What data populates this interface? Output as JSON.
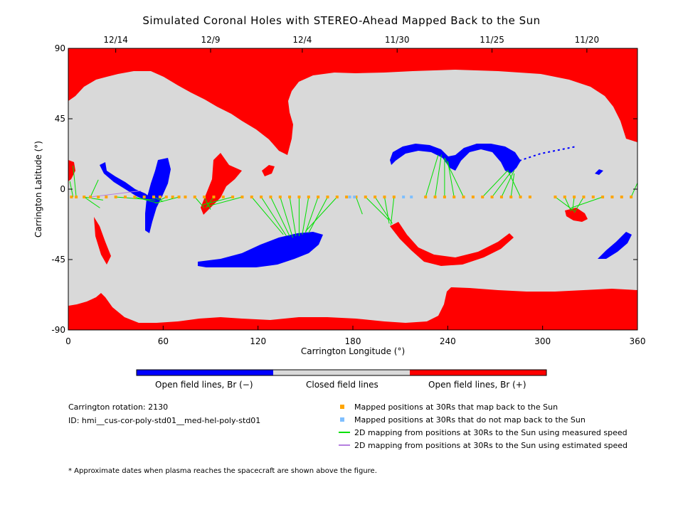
{
  "chart_data": {
    "type": "scatter",
    "title": "Simulated Coronal Holes with STEREO-Ahead Mapped Back to the Sun",
    "xlabel": "Carrington Longitude (°)",
    "ylabel": "Carrington Latitude (°)",
    "xlim": [
      0,
      360
    ],
    "ylim": [
      -90,
      90
    ],
    "x_ticks": [
      0,
      60,
      120,
      180,
      240,
      300,
      360
    ],
    "y_ticks": [
      90,
      45,
      0,
      -45,
      -90
    ],
    "y_tick_labels": [
      "90",
      "45",
      "0",
      "-45",
      "-90"
    ],
    "top_axis_dates": [
      {
        "label": "12/14",
        "lon": 30
      },
      {
        "label": "12/9",
        "lon": 90
      },
      {
        "label": "12/4",
        "lon": 148
      },
      {
        "label": "11/30",
        "lon": 208
      },
      {
        "label": "11/25",
        "lon": 268
      },
      {
        "label": "11/20",
        "lon": 328
      }
    ],
    "colors": {
      "open_negative": "#0000ff",
      "closed": "#d9d9d9",
      "open_positive": "#ff0000",
      "mapped": "#ffa500",
      "not_mapped": "#7fbfff",
      "measured_speed": "#00e000",
      "estimated_speed": "#b57fdf"
    },
    "colorbar": {
      "labels": [
        "Open field lines, Br (−)",
        "Closed field lines",
        "Open field lines, Br (+)"
      ]
    },
    "legend": {
      "placement": "bottom-right",
      "entries": [
        "Mapped positions at 30Rs that map back to the Sun",
        "Mapped positions at 30Rs that do not map back to the Sun",
        "2D mapping from positions at 30Rs to the Sun using measured speed",
        "2D mapping from positions at 30Rs to the Sun using estimated speed"
      ]
    },
    "mapped_points_lon": [
      2,
      5,
      10,
      14,
      19,
      24,
      30,
      36,
      42,
      48,
      54,
      58,
      62,
      66,
      70,
      74,
      80,
      86,
      92,
      98,
      104,
      110,
      116,
      122,
      128,
      134,
      140,
      146,
      152,
      158,
      164,
      170,
      176,
      182,
      188,
      194,
      200,
      206,
      226,
      232,
      238,
      244,
      250,
      256,
      262,
      268,
      274,
      280,
      286,
      292,
      308,
      314,
      320,
      326,
      332,
      338,
      344,
      350,
      356
    ],
    "not_mapped_points_lon": [
      178,
      181,
      212,
      217
    ],
    "points_lat": -5,
    "measured_links": [
      [
        3,
        -5,
        1,
        5
      ],
      [
        5,
        -5,
        3,
        15
      ],
      [
        10,
        -5,
        22,
        -7
      ],
      [
        14,
        -5,
        19,
        6
      ],
      [
        10,
        -5,
        20,
        -12
      ],
      [
        30,
        -5,
        55,
        -7
      ],
      [
        42,
        -5,
        57,
        -9
      ],
      [
        54,
        -5,
        60,
        -8
      ],
      [
        62,
        -5,
        58,
        -7
      ],
      [
        70,
        -5,
        55,
        -9
      ],
      [
        80,
        -5,
        86,
        -12
      ],
      [
        86,
        -5,
        90,
        -13
      ],
      [
        92,
        -5,
        87,
        -12
      ],
      [
        104,
        -5,
        85,
        -10
      ],
      [
        110,
        -5,
        88,
        -11
      ],
      [
        116,
        -5,
        136,
        -29
      ],
      [
        122,
        -5,
        138,
        -30
      ],
      [
        128,
        -5,
        140,
        -30
      ],
      [
        134,
        -5,
        142,
        -31
      ],
      [
        140,
        -5,
        144,
        -30
      ],
      [
        146,
        -5,
        146,
        -30
      ],
      [
        152,
        -5,
        148,
        -29
      ],
      [
        158,
        -5,
        150,
        -28
      ],
      [
        164,
        -5,
        152,
        -28
      ],
      [
        170,
        -5,
        150,
        -27
      ],
      [
        182,
        -5,
        186,
        -16
      ],
      [
        188,
        -5,
        203,
        -20
      ],
      [
        194,
        -5,
        205,
        -22
      ],
      [
        200,
        -5,
        203,
        -22
      ],
      [
        206,
        -5,
        204,
        -23
      ],
      [
        226,
        -5,
        234,
        22
      ],
      [
        232,
        -5,
        236,
        22
      ],
      [
        238,
        -5,
        238,
        20
      ],
      [
        244,
        -5,
        240,
        18
      ],
      [
        250,
        -5,
        238,
        20
      ],
      [
        262,
        -5,
        278,
        12
      ],
      [
        268,
        -5,
        280,
        11
      ],
      [
        274,
        -5,
        282,
        12
      ],
      [
        280,
        -5,
        282,
        10
      ],
      [
        286,
        -5,
        278,
        12
      ],
      [
        308,
        -5,
        320,
        -14
      ],
      [
        314,
        -5,
        318,
        -14
      ],
      [
        320,
        -5,
        319,
        -13
      ],
      [
        326,
        -5,
        320,
        -15
      ],
      [
        338,
        -5,
        318,
        -12
      ],
      [
        356,
        -5,
        360,
        4
      ]
    ],
    "estimated_links": [
      [
        14,
        -5,
        46,
        -1
      ]
    ]
  },
  "info": {
    "rotation": "Carrington rotation: 2130",
    "id": "ID: hmi__cus-cor-poly-std01__med-hel-poly-std01"
  },
  "footnote": "* Approximate dates when plasma reaches the spacecraft are shown above the figure."
}
